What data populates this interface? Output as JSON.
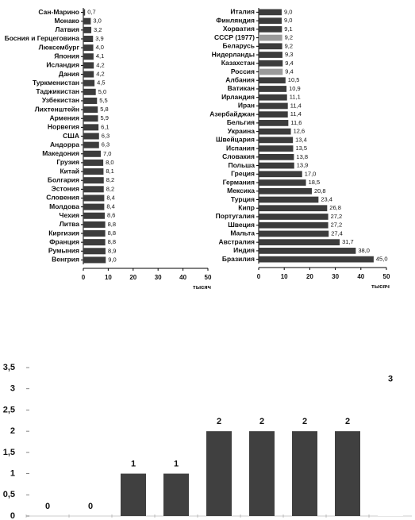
{
  "chart_data": [
    {
      "type": "bar",
      "orientation": "horizontal",
      "xlabel": "тысяч",
      "categories": [
        "Сан-Марино",
        "Монако",
        "Латвия",
        "Босния и Герцеговина",
        "Люксембург",
        "Япония",
        "Исландия",
        "Дания",
        "Туркменистан",
        "Таджикистан",
        "Узбекистан",
        "Лихтенштейн",
        "Армения",
        "Норвегия",
        "США",
        "Андорра",
        "Македония",
        "Грузия",
        "Китай",
        "Болгария",
        "Эстония",
        "Словения",
        "Молдова",
        "Чехия",
        "Литва",
        "Киргизия",
        "Франция",
        "Румыния",
        "Венгрия"
      ],
      "values": [
        0.7,
        3.0,
        3.2,
        3.9,
        4.0,
        4.1,
        4.2,
        4.2,
        4.5,
        5.0,
        5.5,
        5.8,
        5.9,
        6.1,
        6.3,
        6.3,
        7.0,
        8.0,
        8.1,
        8.2,
        8.2,
        8.4,
        8.4,
        8.6,
        8.8,
        8.8,
        8.8,
        8.9,
        9.0
      ],
      "value_labels": [
        "0,7",
        "3,0",
        "3,2",
        "3,9",
        "4,0",
        "4,1",
        "4,2",
        "4,2",
        "4,5",
        "5,0",
        "5,5",
        "5,8",
        "5,9",
        "6,1",
        "6,3",
        "6,3",
        "7,0",
        "8,0",
        "8,1",
        "8,2",
        "8,2",
        "8,4",
        "8,4",
        "8,6",
        "8,8",
        "8,8",
        "8,8",
        "8,9",
        "9,0"
      ],
      "color": "#3c3c3c",
      "xlim": [
        0,
        50
      ],
      "xticks": [
        0,
        10,
        20,
        30,
        40,
        50
      ]
    },
    {
      "type": "bar",
      "orientation": "horizontal",
      "xlabel": "тысяч",
      "categories": [
        "Италия",
        "Финляндия",
        "Хорватия",
        "СССР (1977)",
        "Беларусь",
        "Нидерланды",
        "Казахстан",
        "Россия",
        "Албания",
        "Ватикан",
        "Ирландия",
        "Иран",
        "Азербайджан",
        "Бельгия",
        "Украина",
        "Швейцария",
        "Испания",
        "Словакия",
        "Польша",
        "Греция",
        "Германия",
        "Мексика",
        "Турция",
        "Кипр",
        "Португалия",
        "Швеция",
        "Мальта",
        "Австралия",
        "Индия",
        "Бразилия"
      ],
      "values": [
        9.0,
        9.0,
        9.1,
        9.2,
        9.2,
        9.3,
        9.4,
        9.4,
        10.5,
        10.9,
        11.1,
        11.4,
        11.4,
        11.6,
        12.6,
        13.4,
        13.5,
        13.8,
        13.9,
        17.0,
        18.5,
        20.8,
        23.4,
        26.8,
        27.2,
        27.2,
        27.4,
        31.7,
        38.0,
        45.0
      ],
      "value_labels": [
        "9,0",
        "9,0",
        "9,1",
        "9,2",
        "9,2",
        "9,3",
        "9,4",
        "9,4",
        "10,5",
        "10,9",
        "11,1",
        "11,4",
        "11,4",
        "11,6",
        "12,6",
        "13,4",
        "13,5",
        "13,8",
        "13,9",
        "17,0",
        "18,5",
        "20,8",
        "23,4",
        "26,8",
        "27,2",
        "27,2",
        "27,4",
        "31,7",
        "38,0",
        "45,0"
      ],
      "colors": [
        "#3c3c3c",
        "#3c3c3c",
        "#3c3c3c",
        "#9a9a9a",
        "#3c3c3c",
        "#3c3c3c",
        "#3c3c3c",
        "#9a9a9a",
        "#3c3c3c",
        "#3c3c3c",
        "#3c3c3c",
        "#3c3c3c",
        "#3c3c3c",
        "#3c3c3c",
        "#3c3c3c",
        "#3c3c3c",
        "#3c3c3c",
        "#3c3c3c",
        "#3c3c3c",
        "#3c3c3c",
        "#3c3c3c",
        "#3c3c3c",
        "#3c3c3c",
        "#3c3c3c",
        "#3c3c3c",
        "#3c3c3c",
        "#3c3c3c",
        "#3c3c3c",
        "#3c3c3c",
        "#3c3c3c"
      ],
      "xlim": [
        0,
        50
      ],
      "xticks": [
        0,
        10,
        20,
        30,
        40,
        50
      ]
    },
    {
      "type": "bar",
      "orientation": "vertical",
      "categories": [
        null,
        null,
        null,
        null,
        null,
        null,
        null,
        null,
        null
      ],
      "values": [
        0,
        0,
        1,
        1,
        2,
        2,
        2,
        2,
        3
      ],
      "colors": [
        "#404040",
        "#404040",
        "#404040",
        "#404040",
        "#404040",
        "#404040",
        "#404040",
        "#404040",
        "#ffffff"
      ],
      "ylim": [
        0,
        3.5
      ],
      "yticks": [
        0,
        {
          "value": 0.5,
          "label": "0,5"
        },
        1,
        {
          "value": 1.5,
          "label": "1,5"
        },
        2,
        {
          "value": 2.5,
          "label": "2,5"
        },
        3,
        {
          "value": 3.5,
          "label": "3,5"
        }
      ]
    }
  ]
}
